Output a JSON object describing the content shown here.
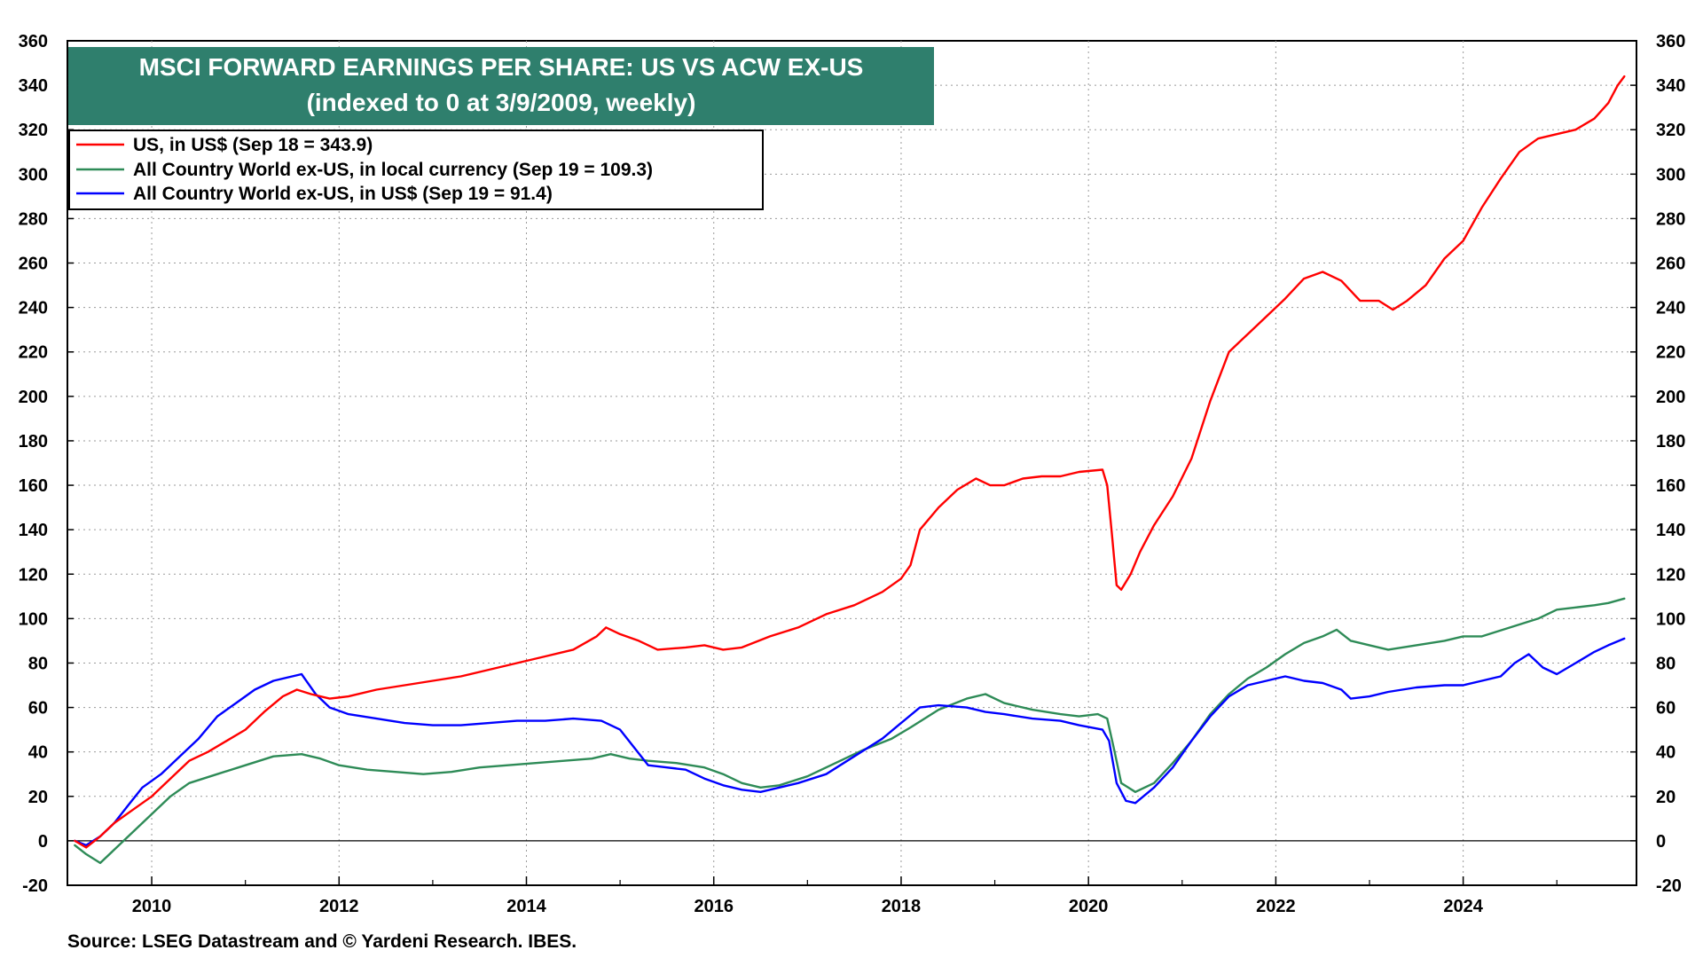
{
  "chart_data": {
    "type": "line",
    "title": "MSCI FORWARD EARNINGS PER SHARE: US VS ACW EX-US",
    "subtitle": "(indexed to 0 at 3/9/2009, weekly)",
    "source": "Source: LSEG Datastream and © Yardeni Research. IBES.",
    "ylim": [
      -20,
      360
    ],
    "xlim": [
      2009.1,
      2025.85
    ],
    "y_ticks": [
      360,
      340,
      320,
      300,
      280,
      260,
      240,
      220,
      200,
      180,
      160,
      140,
      120,
      100,
      80,
      60,
      40,
      20,
      0,
      -20
    ],
    "y_tick_labels": [
      "360",
      "340",
      "320",
      "300",
      "280",
      "260",
      "240",
      "220",
      "200",
      "180",
      "160",
      "140",
      "120",
      "100",
      "80",
      "60",
      "40",
      "20",
      "0",
      "-20"
    ],
    "x_ticks": [
      2010,
      2012,
      2014,
      2016,
      2018,
      2020,
      2022,
      2024
    ],
    "x_tick_labels": [
      "2010",
      "2012",
      "2014",
      "2016",
      "2018",
      "2020",
      "2022",
      "2024"
    ],
    "grid": true,
    "zero_line": true,
    "legend_position": "top-left",
    "series": [
      {
        "name": "US, in US$ (Sep 18 = 343.9)",
        "color": "#ff0000",
        "x": [
          2009.18,
          2009.3,
          2009.45,
          2009.6,
          2009.8,
          2010.0,
          2010.2,
          2010.4,
          2010.6,
          2010.8,
          2011.0,
          2011.2,
          2011.4,
          2011.55,
          2011.7,
          2011.9,
          2012.1,
          2012.4,
          2012.7,
          2013.0,
          2013.3,
          2013.6,
          2013.9,
          2014.2,
          2014.5,
          2014.75,
          2014.85,
          2015.0,
          2015.2,
          2015.4,
          2015.7,
          2015.9,
          2016.1,
          2016.3,
          2016.6,
          2016.9,
          2017.2,
          2017.5,
          2017.8,
          2018.0,
          2018.1,
          2018.2,
          2018.4,
          2018.6,
          2018.8,
          2018.95,
          2019.1,
          2019.3,
          2019.5,
          2019.7,
          2019.9,
          2020.15,
          2020.2,
          2020.25,
          2020.3,
          2020.35,
          2020.45,
          2020.55,
          2020.7,
          2020.9,
          2021.1,
          2021.3,
          2021.5,
          2021.7,
          2021.9,
          2022.1,
          2022.3,
          2022.5,
          2022.7,
          2022.9,
          2023.1,
          2023.25,
          2023.4,
          2023.6,
          2023.8,
          2024.0,
          2024.2,
          2024.4,
          2024.6,
          2024.8,
          2025.0,
          2025.2,
          2025.4,
          2025.55,
          2025.65,
          2025.72
        ],
        "values": [
          0,
          -3,
          2,
          8,
          14,
          20,
          28,
          36,
          40,
          45,
          50,
          58,
          65,
          68,
          66,
          64,
          65,
          68,
          70,
          72,
          74,
          77,
          80,
          83,
          86,
          92,
          96,
          93,
          90,
          86,
          87,
          88,
          86,
          87,
          92,
          96,
          102,
          106,
          112,
          118,
          124,
          140,
          150,
          158,
          163,
          160,
          160,
          163,
          164,
          164,
          166,
          167,
          160,
          138,
          115,
          113,
          120,
          130,
          142,
          155,
          172,
          198,
          220,
          228,
          236,
          244,
          253,
          256,
          252,
          243,
          243,
          239,
          243,
          250,
          262,
          270,
          285,
          298,
          310,
          316,
          318,
          320,
          325,
          332,
          340,
          344
        ]
      },
      {
        "name": "All Country World ex-US, in local currency (Sep 19 = 109.3)",
        "color": "#2e8b57",
        "x": [
          2009.18,
          2009.3,
          2009.45,
          2009.6,
          2009.8,
          2010.0,
          2010.2,
          2010.4,
          2010.7,
          2011.0,
          2011.3,
          2011.6,
          2011.8,
          2012.0,
          2012.3,
          2012.6,
          2012.9,
          2013.2,
          2013.5,
          2013.8,
          2014.1,
          2014.4,
          2014.7,
          2014.9,
          2015.1,
          2015.3,
          2015.6,
          2015.9,
          2016.1,
          2016.3,
          2016.5,
          2016.7,
          2017.0,
          2017.3,
          2017.6,
          2017.9,
          2018.1,
          2018.4,
          2018.7,
          2018.9,
          2019.1,
          2019.4,
          2019.7,
          2019.9,
          2020.1,
          2020.2,
          2020.28,
          2020.35,
          2020.5,
          2020.7,
          2020.9,
          2021.1,
          2021.3,
          2021.5,
          2021.7,
          2021.9,
          2022.1,
          2022.3,
          2022.5,
          2022.65,
          2022.8,
          2023.0,
          2023.2,
          2023.5,
          2023.8,
          2024.0,
          2024.2,
          2024.5,
          2024.8,
          2025.0,
          2025.2,
          2025.4,
          2025.55,
          2025.72
        ],
        "values": [
          -2,
          -6,
          -10,
          -4,
          4,
          12,
          20,
          26,
          30,
          34,
          38,
          39,
          37,
          34,
          32,
          31,
          30,
          31,
          33,
          34,
          35,
          36,
          37,
          39,
          37,
          36,
          35,
          33,
          30,
          26,
          24,
          25,
          29,
          35,
          41,
          46,
          51,
          59,
          64,
          66,
          62,
          59,
          57,
          56,
          57,
          55,
          40,
          26,
          22,
          26,
          35,
          45,
          57,
          66,
          73,
          78,
          84,
          89,
          92,
          95,
          90,
          88,
          86,
          88,
          90,
          92,
          92,
          96,
          100,
          104,
          105,
          106,
          107,
          109
        ]
      },
      {
        "name": "All Country World ex-US, in US$ (Sep 19 = 91.4)",
        "color": "#0000ff",
        "x": [
          2009.18,
          2009.3,
          2009.45,
          2009.6,
          2009.75,
          2009.9,
          2010.1,
          2010.3,
          2010.5,
          2010.7,
          2010.9,
          2011.1,
          2011.3,
          2011.5,
          2011.6,
          2011.75,
          2011.9,
          2012.1,
          2012.4,
          2012.7,
          2013.0,
          2013.3,
          2013.6,
          2013.9,
          2014.2,
          2014.5,
          2014.8,
          2015.0,
          2015.15,
          2015.3,
          2015.5,
          2015.7,
          2015.9,
          2016.1,
          2016.3,
          2016.5,
          2016.7,
          2016.9,
          2017.2,
          2017.5,
          2017.8,
          2018.0,
          2018.2,
          2018.4,
          2018.7,
          2018.9,
          2019.1,
          2019.4,
          2019.7,
          2019.9,
          2020.15,
          2020.22,
          2020.3,
          2020.4,
          2020.5,
          2020.7,
          2020.9,
          2021.1,
          2021.3,
          2021.5,
          2021.7,
          2021.9,
          2022.1,
          2022.3,
          2022.5,
          2022.7,
          2022.8,
          2023.0,
          2023.2,
          2023.5,
          2023.8,
          2024.0,
          2024.2,
          2024.4,
          2024.55,
          2024.7,
          2024.85,
          2025.0,
          2025.2,
          2025.4,
          2025.55,
          2025.72
        ],
        "values": [
          0,
          -2,
          2,
          8,
          16,
          24,
          30,
          38,
          46,
          56,
          62,
          68,
          72,
          74,
          75,
          66,
          60,
          57,
          55,
          53,
          52,
          52,
          53,
          54,
          54,
          55,
          54,
          50,
          42,
          34,
          33,
          32,
          28,
          25,
          23,
          22,
          24,
          26,
          30,
          38,
          46,
          53,
          60,
          61,
          60,
          58,
          57,
          55,
          54,
          52,
          50,
          45,
          26,
          18,
          17,
          24,
          33,
          45,
          56,
          65,
          70,
          72,
          74,
          72,
          71,
          68,
          64,
          65,
          67,
          69,
          70,
          70,
          72,
          74,
          80,
          84,
          78,
          75,
          80,
          85,
          88,
          91
        ]
      }
    ]
  }
}
